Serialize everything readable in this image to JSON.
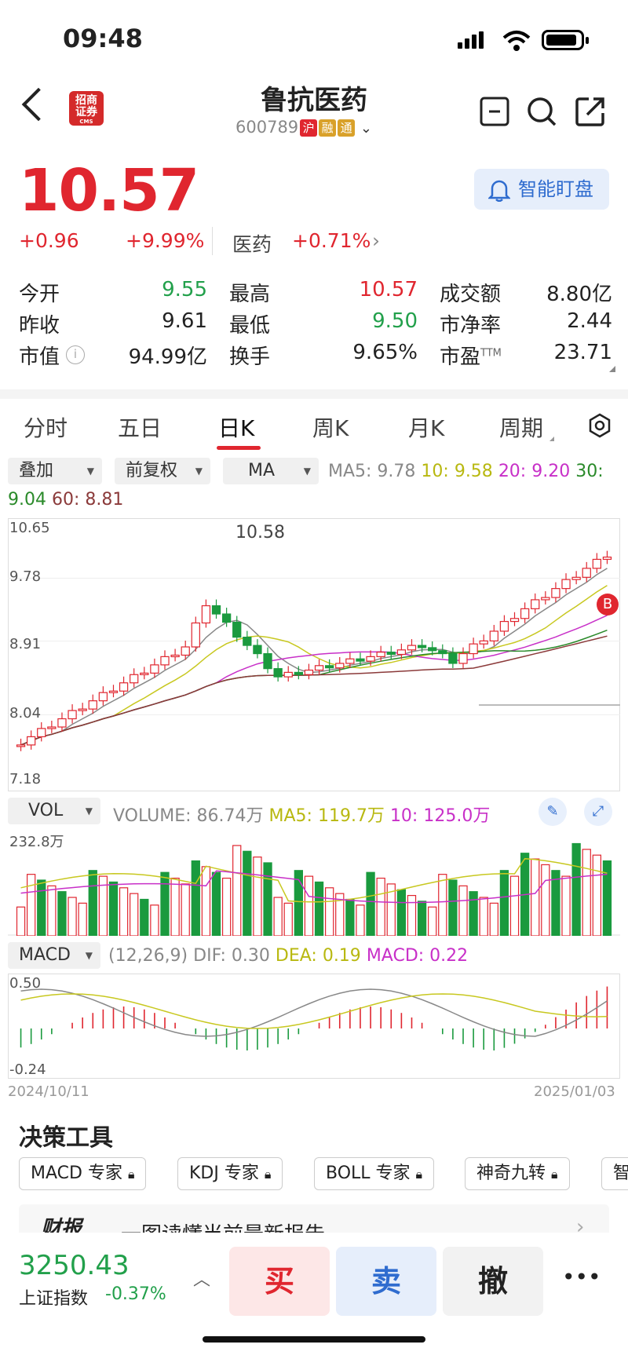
{
  "status": {
    "time": "09:48"
  },
  "header": {
    "logo_text": "招商证券",
    "logo_sub": "CMS",
    "name": "鲁抗医药",
    "code": "600789",
    "tags": [
      "沪",
      "融",
      "通"
    ]
  },
  "quote": {
    "price": "10.57",
    "change": "+0.96",
    "change_pct": "+9.99%",
    "sector": "医药",
    "sector_pct": "+0.71%",
    "alert_label": "智能盯盘",
    "stats": [
      [
        [
          "今开",
          "9.55",
          "green"
        ],
        [
          "最高",
          "10.57",
          "red"
        ],
        [
          "成交额",
          "8.80亿",
          "normal"
        ]
      ],
      [
        [
          "昨收",
          "9.61",
          "normal"
        ],
        [
          "最低",
          "9.50",
          "green"
        ],
        [
          "市净率",
          "2.44",
          "normal"
        ]
      ],
      [
        [
          "市值",
          "94.99亿",
          "normal"
        ],
        [
          "换手",
          "9.65%",
          "normal"
        ],
        [
          "市盈",
          "23.71",
          "normal"
        ]
      ]
    ],
    "pe_superscript": "TTM"
  },
  "tabs": [
    "分时",
    "五日",
    "日K",
    "周K",
    "月K",
    "周期"
  ],
  "active_tab": "日K",
  "kline": {
    "dropdowns": [
      "叠加",
      "前复权",
      "MA"
    ],
    "ma_legend": {
      "ma5": "MA5: 9.78",
      "ma10": "10: 9.58",
      "ma20": "20: 9.20",
      "ma30_a": "30:",
      "ma30_b": "9.04",
      "ma60": "60: 8.81"
    },
    "y_labels": [
      "10.65",
      "9.78",
      "8.91",
      "8.04",
      "7.18"
    ],
    "high_label": "10.58",
    "buy_marker": "B",
    "colors": {
      "up": "#e0262f",
      "down": "#1a9a3e",
      "ma5": "#888888",
      "ma10": "#c8c820",
      "ma20": "#c830c8",
      "ma30": "#2a8a2a",
      "ma60": "#8b3a3a"
    }
  },
  "volume": {
    "dropdown": "VOL",
    "legend_vol": "VOLUME: 86.74万",
    "legend_ma5": "MA5: 119.7万",
    "legend_ma10": "10: 125.0万",
    "y_label": "232.8万"
  },
  "macd": {
    "dropdown": "MACD",
    "params": "(12,26,9)",
    "dif": "DIF: 0.30",
    "dea": "DEA: 0.19",
    "macd": "MACD: 0.22",
    "y_top": "0.50",
    "y_bottom": "-0.24",
    "date_start": "2024/10/11",
    "date_end": "2025/01/03"
  },
  "tools": {
    "title": "决策工具",
    "items": [
      "MACD 专家",
      "KDJ 专家",
      "BOLL 专家",
      "神奇九转",
      "智"
    ]
  },
  "report": {
    "logo": "财报",
    "text": "一图读懂当前最新报告"
  },
  "bottom": {
    "index_value": "3250.43",
    "index_name": "上证指数",
    "index_pct": "-0.37%",
    "buy": "买",
    "sell": "卖",
    "cancel": "撤",
    "more": "•••"
  }
}
